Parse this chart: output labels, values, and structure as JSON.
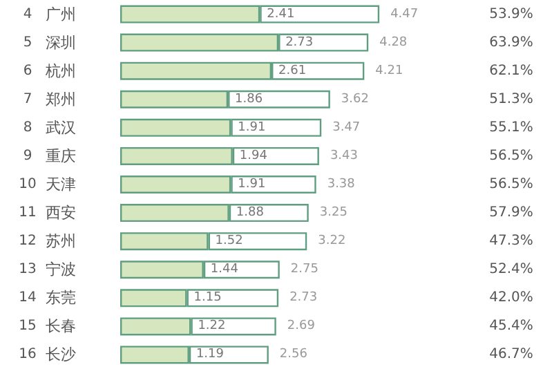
{
  "chart_data": {
    "type": "bar",
    "orientation": "horizontal",
    "stacked": true,
    "categories": [
      "广州",
      "深圳",
      "杭州",
      "郑州",
      "武汉",
      "重庆",
      "天津",
      "西安",
      "苏州",
      "宁波",
      "东莞",
      "长春",
      "长沙"
    ],
    "series": [
      {
        "color": "#d6e6bf",
        "values": [
          2.41,
          2.73,
          2.61,
          1.86,
          1.91,
          1.94,
          1.91,
          1.88,
          1.52,
          1.44,
          1.15,
          1.22,
          1.19
        ],
        "value_labels": [
          "2.41",
          "2.73",
          "2.61",
          "1.86",
          "1.91",
          "1.94",
          "1.91",
          "1.88",
          "1.52",
          "1.44",
          "1.15",
          "1.22",
          "1.19"
        ]
      },
      {
        "color": "#ffffff",
        "values": [
          2.06,
          1.55,
          1.6,
          1.76,
          1.56,
          1.49,
          1.47,
          1.37,
          1.7,
          1.31,
          1.58,
          1.47,
          1.37
        ]
      }
    ],
    "totals": [
      "4.47",
      "4.28",
      "4.21",
      "3.62",
      "3.47",
      "3.43",
      "3.38",
      "3.25",
      "3.22",
      "2.75",
      "2.73",
      "2.69",
      "2.56"
    ],
    "tick_labels": "y",
    "grid": false,
    "annotations": [
      "4",
      "5",
      "6",
      "7",
      "8",
      "9",
      "10",
      "11",
      "12",
      "13",
      "14",
      "15",
      "16",
      "53.9%",
      "63.9%",
      "62.1%",
      "51.3%",
      "55.1%",
      "56.5%",
      "56.5%",
      "57.9%",
      "47.3%",
      "52.4%",
      "42.0%",
      "45.4%",
      "46.7%"
    ]
  }
}
